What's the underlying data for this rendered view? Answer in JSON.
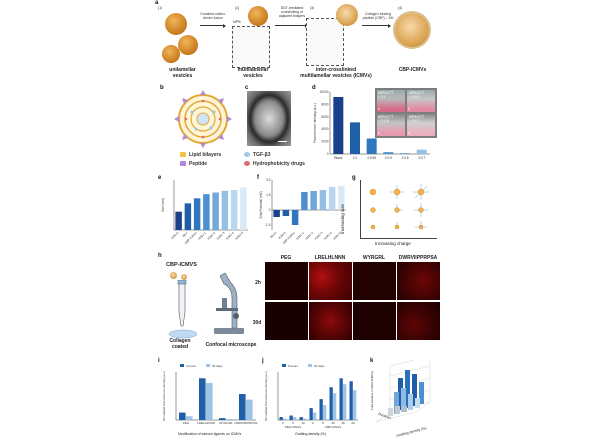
{
  "panel_a": {
    "label": "a",
    "steps": [
      "(1)",
      "(2)",
      "(3)",
      "(4)"
    ],
    "arrow1": "Covalent-cation-\ndriven fusion",
    "mpb_label": "MPB",
    "arrow2": "DDT-mediated\ncrosslinking of\nadjacent bilayers",
    "arrow3": "Collagen binding\npeptide (CBP) – SH",
    "stage1": "unilamellar\nvesicles",
    "stage2": "multilamellar\nvesicles",
    "stage3": "inter-crosslinked\nmultilamellar vesicles (ICMVs)",
    "stage4": "CBP-ICMVs"
  },
  "panel_b": {
    "label": "b",
    "legend": [
      {
        "name": "Lipid bilayers",
        "color": "#f0c24a"
      },
      {
        "name": "TGF-β3",
        "color": "#9ec9e8"
      },
      {
        "name": "Peptide",
        "color": "#b38ad6"
      },
      {
        "name": "Hydrophobicity drugs",
        "color": "#e36b6b"
      }
    ]
  },
  "panel_c": {
    "label": "c"
  },
  "panel_d": {
    "label": "d",
    "photo_labels": [
      "MPB:DTT\n= 2:1",
      "MPB:DTT\n= 2:0.9",
      "MPB:DTT\n= 2:0.8",
      "MPB:DTT\n= 2:0.7"
    ],
    "photo_markers": [
      "a",
      "b",
      "c",
      "d"
    ],
    "chart_data": {
      "type": "bar",
      "categories": [
        "Blank",
        "2:1",
        "2:0.95",
        "2:0.9",
        "2:0.8",
        "2:0.7"
      ],
      "values": [
        9200,
        5100,
        2500,
        300,
        150,
        700
      ],
      "ylabel": "Fluorescence intensity (a.u.)",
      "yticks": [
        "0",
        "2000",
        "4000",
        "6000",
        "8000",
        "10000"
      ],
      "ylim": [
        0,
        10000
      ]
    }
  },
  "panel_e": {
    "label": "e",
    "chart_data": {
      "type": "bar",
      "categories": [
        "ICMVs",
        "MLV",
        "CBP-ICMVs",
        "ICMV-1",
        "ICMV-2",
        "ICMV-3",
        "ICMV-4",
        "ICMV-5"
      ],
      "values": [
        110,
        160,
        190,
        215,
        225,
        235,
        240,
        255
      ],
      "ylabel": "Size (nm)",
      "ylim": [
        0,
        300
      ],
      "colors": [
        "#1a3f8c",
        "#1f5ea8",
        "#2f77bf",
        "#4d90cf",
        "#70a8dc",
        "#95c0e6",
        "#b8d6ef",
        "#d9e9f6"
      ]
    }
  },
  "panel_f": {
    "label": "f",
    "chart_data": {
      "type": "bar",
      "categories": [
        "MLVs",
        "ICMVs",
        "CBP-ICMVs",
        "ICMV-1",
        "ICMV-2",
        "ICMV-3",
        "ICMV-4",
        "ICMV-5"
      ],
      "values": [
        -0.7,
        -0.6,
        -1.5,
        1.8,
        1.9,
        2.0,
        2.3,
        2.4
      ],
      "ylabel": "Zeta Potential (mV)",
      "yticks": [
        "-1.5",
        "0",
        "1.5",
        "3.0"
      ],
      "ylim": [
        -2,
        3
      ],
      "colors": [
        "#1a3f8c",
        "#1f5ea8",
        "#2f77bf",
        "#4d90cf",
        "#70a8dc",
        "#95c0e6",
        "#b8d6ef",
        "#d9e9f6"
      ]
    }
  },
  "panel_g": {
    "label": "g",
    "y_axis": "Increasing size",
    "x_axis": "Increasing  charge"
  },
  "panel_h": {
    "label": "h",
    "title": "CBP-ICMVS",
    "caption_left": "Collagen\ncoated",
    "caption_right": "Confocal microscope",
    "columns": [
      "PEG",
      "LRELHLNNN",
      "WYRGRL",
      "DWRVIIPPRPSA"
    ],
    "rows": [
      "2h",
      "30d"
    ]
  },
  "panel_i": {
    "label": "i",
    "legend": [
      "2 hours",
      "30 days"
    ],
    "xlabel": "Modification of various ligands on ICMVs",
    "ylabel": "Normalized Fluorescence intensity (a.u.)",
    "chart_data": {
      "type": "bar",
      "categories": [
        "PEG",
        "LRELHLNNN",
        "WYRGRL",
        "DWRVIIPPRPSA"
      ],
      "series": [
        {
          "name": "2 hours",
          "values": [
            8,
            45,
            2,
            28
          ]
        },
        {
          "name": "30 days",
          "values": [
            4,
            40,
            1,
            22
          ]
        }
      ]
    }
  },
  "panel_j": {
    "label": "j",
    "legend": [
      "0 hours",
      "30 days"
    ],
    "xlabel": "Grafting density (%)",
    "ylabel": "Normalized Fluorescence intensity (a.u.)",
    "groups": [
      "PEG-ICMVs",
      "CBP-ICMVs"
    ],
    "chart_data": {
      "type": "bar",
      "categories": [
        "2",
        "5",
        "10",
        "2",
        "5",
        "10",
        "15",
        "20"
      ],
      "series": [
        {
          "name": "0 hours",
          "values": [
            2,
            3,
            2,
            8,
            14,
            22,
            28,
            26
          ]
        },
        {
          "name": "30 days",
          "values": [
            1,
            2,
            1,
            5,
            10,
            18,
            24,
            20
          ]
        }
      ]
    }
  },
  "panel_k": {
    "label": "k",
    "xlabel": "Grafting density (%)",
    "ylabel": "Fold (relative to PEG-ICMVs)",
    "zlabel": "Duration"
  }
}
